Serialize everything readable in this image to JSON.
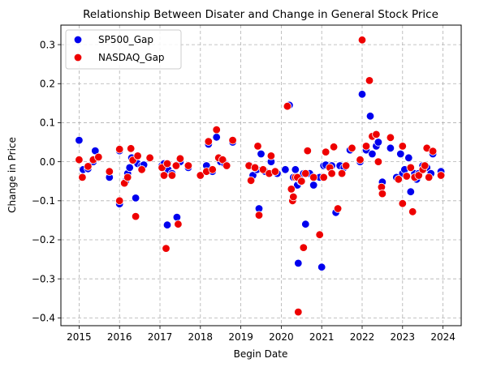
{
  "chart_data": {
    "type": "scatter",
    "title": "Relationship Between Disater and Change in General Stock Price",
    "xlabel": "Begin Date",
    "ylabel": "Change in Price",
    "xlim": [
      2014.55,
      2024.45
    ],
    "ylim": [
      -0.42,
      0.35
    ],
    "x_ticks": [
      2015,
      2016,
      2017,
      2018,
      2019,
      2020,
      2021,
      2022,
      2023,
      2024
    ],
    "x_tick_labels": [
      "2015",
      "2016",
      "2017",
      "2018",
      "2019",
      "2020",
      "2021",
      "2022",
      "2023",
      "2024"
    ],
    "y_ticks": [
      -0.4,
      -0.3,
      -0.2,
      -0.1,
      0.0,
      0.1,
      0.2,
      0.3
    ],
    "y_tick_labels": [
      "−0.4",
      "−0.3",
      "−0.2",
      "−0.1",
      "0.0",
      "0.1",
      "0.2",
      "0.3"
    ],
    "grid": true,
    "legend_position": "top-left",
    "series": [
      {
        "name": "SP500_Gap",
        "color": "#0000ee",
        "points": [
          [
            2015.0,
            0.055
          ],
          [
            2015.1,
            -0.02
          ],
          [
            2015.22,
            -0.018
          ],
          [
            2015.35,
            0.0
          ],
          [
            2015.4,
            0.028
          ],
          [
            2015.48,
            0.01
          ],
          [
            2015.75,
            -0.04
          ],
          [
            2016.0,
            -0.108
          ],
          [
            2016.0,
            0.028
          ],
          [
            2016.15,
            -0.05
          ],
          [
            2016.2,
            -0.03
          ],
          [
            2016.25,
            -0.015
          ],
          [
            2016.3,
            0.01
          ],
          [
            2016.4,
            -0.093
          ],
          [
            2016.45,
            -0.005
          ],
          [
            2016.55,
            -0.01
          ],
          [
            2016.6,
            -0.008
          ],
          [
            2017.05,
            -0.01
          ],
          [
            2017.1,
            -0.005
          ],
          [
            2017.18,
            -0.162
          ],
          [
            2017.2,
            -0.02
          ],
          [
            2017.3,
            -0.03
          ],
          [
            2017.42,
            -0.142
          ],
          [
            2017.5,
            0.0
          ],
          [
            2017.7,
            -0.015
          ],
          [
            2018.0,
            -0.035
          ],
          [
            2018.15,
            -0.01
          ],
          [
            2018.2,
            0.045
          ],
          [
            2018.3,
            -0.025
          ],
          [
            2018.4,
            0.063
          ],
          [
            2018.5,
            0.0
          ],
          [
            2018.6,
            -0.005
          ],
          [
            2018.8,
            0.05
          ],
          [
            2019.2,
            -0.008
          ],
          [
            2019.3,
            -0.035
          ],
          [
            2019.4,
            -0.02
          ],
          [
            2019.45,
            -0.12
          ],
          [
            2019.5,
            0.02
          ],
          [
            2019.6,
            -0.025
          ],
          [
            2019.75,
            0.0
          ],
          [
            2019.9,
            -0.03
          ],
          [
            2020.1,
            -0.02
          ],
          [
            2020.2,
            0.145
          ],
          [
            2020.3,
            -0.04
          ],
          [
            2020.35,
            -0.02
          ],
          [
            2020.4,
            -0.06
          ],
          [
            2020.42,
            -0.26
          ],
          [
            2020.48,
            -0.05
          ],
          [
            2020.55,
            -0.03
          ],
          [
            2020.6,
            -0.16
          ],
          [
            2020.7,
            -0.03
          ],
          [
            2020.8,
            -0.06
          ],
          [
            2020.95,
            -0.04
          ],
          [
            2021.0,
            -0.27
          ],
          [
            2021.05,
            -0.01
          ],
          [
            2021.1,
            -0.008
          ],
          [
            2021.25,
            -0.01
          ],
          [
            2021.35,
            -0.13
          ],
          [
            2021.45,
            -0.01
          ],
          [
            2021.55,
            -0.015
          ],
          [
            2021.7,
            0.03
          ],
          [
            2021.95,
            0.0
          ],
          [
            2022.0,
            0.173
          ],
          [
            2022.1,
            0.03
          ],
          [
            2022.2,
            0.117
          ],
          [
            2022.25,
            0.02
          ],
          [
            2022.35,
            0.04
          ],
          [
            2022.4,
            0.05
          ],
          [
            2022.5,
            -0.052
          ],
          [
            2022.7,
            0.035
          ],
          [
            2022.85,
            -0.04
          ],
          [
            2022.95,
            0.02
          ],
          [
            2023.0,
            -0.03
          ],
          [
            2023.05,
            -0.02
          ],
          [
            2023.15,
            0.01
          ],
          [
            2023.2,
            -0.077
          ],
          [
            2023.3,
            -0.03
          ],
          [
            2023.35,
            -0.045
          ],
          [
            2023.4,
            -0.03
          ],
          [
            2023.5,
            -0.01
          ],
          [
            2023.6,
            -0.015
          ],
          [
            2023.7,
            -0.03
          ],
          [
            2023.75,
            0.02
          ],
          [
            2023.95,
            -0.025
          ]
        ]
      },
      {
        "name": "NASDAQ_Gap",
        "color": "#ee0000",
        "points": [
          [
            2015.0,
            0.005
          ],
          [
            2015.08,
            -0.04
          ],
          [
            2015.22,
            -0.012
          ],
          [
            2015.35,
            0.005
          ],
          [
            2015.48,
            0.012
          ],
          [
            2015.75,
            -0.025
          ],
          [
            2016.0,
            -0.1
          ],
          [
            2016.0,
            0.032
          ],
          [
            2016.12,
            -0.055
          ],
          [
            2016.2,
            -0.04
          ],
          [
            2016.28,
            0.034
          ],
          [
            2016.33,
            0.004
          ],
          [
            2016.4,
            -0.14
          ],
          [
            2016.45,
            0.015
          ],
          [
            2016.55,
            -0.02
          ],
          [
            2016.75,
            0.01
          ],
          [
            2017.05,
            -0.015
          ],
          [
            2017.1,
            -0.035
          ],
          [
            2017.15,
            -0.222
          ],
          [
            2017.18,
            -0.005
          ],
          [
            2017.3,
            -0.035
          ],
          [
            2017.4,
            -0.01
          ],
          [
            2017.45,
            -0.16
          ],
          [
            2017.5,
            0.008
          ],
          [
            2017.7,
            -0.01
          ],
          [
            2018.0,
            -0.035
          ],
          [
            2018.15,
            -0.025
          ],
          [
            2018.2,
            0.052
          ],
          [
            2018.3,
            -0.02
          ],
          [
            2018.4,
            0.082
          ],
          [
            2018.45,
            0.01
          ],
          [
            2018.55,
            0.005
          ],
          [
            2018.65,
            -0.01
          ],
          [
            2018.8,
            0.055
          ],
          [
            2019.2,
            -0.01
          ],
          [
            2019.25,
            -0.048
          ],
          [
            2019.35,
            -0.015
          ],
          [
            2019.45,
            -0.137
          ],
          [
            2019.42,
            0.04
          ],
          [
            2019.55,
            -0.02
          ],
          [
            2019.7,
            -0.03
          ],
          [
            2019.75,
            0.015
          ],
          [
            2019.85,
            -0.025
          ],
          [
            2020.15,
            0.142
          ],
          [
            2020.25,
            -0.07
          ],
          [
            2020.28,
            -0.1
          ],
          [
            2020.3,
            -0.09
          ],
          [
            2020.35,
            -0.04
          ],
          [
            2020.4,
            -0.04
          ],
          [
            2020.42,
            -0.385
          ],
          [
            2020.5,
            -0.05
          ],
          [
            2020.55,
            -0.22
          ],
          [
            2020.6,
            -0.03
          ],
          [
            2020.65,
            0.028
          ],
          [
            2020.8,
            -0.04
          ],
          [
            2020.95,
            -0.187
          ],
          [
            2021.05,
            -0.04
          ],
          [
            2021.1,
            0.025
          ],
          [
            2021.2,
            -0.015
          ],
          [
            2021.25,
            -0.03
          ],
          [
            2021.3,
            0.038
          ],
          [
            2021.4,
            -0.12
          ],
          [
            2021.5,
            -0.03
          ],
          [
            2021.6,
            -0.01
          ],
          [
            2021.75,
            0.035
          ],
          [
            2021.95,
            0.005
          ],
          [
            2022.0,
            0.312
          ],
          [
            2022.1,
            0.04
          ],
          [
            2022.18,
            0.208
          ],
          [
            2022.25,
            0.065
          ],
          [
            2022.35,
            0.07
          ],
          [
            2022.4,
            0.0
          ],
          [
            2022.48,
            -0.065
          ],
          [
            2022.5,
            -0.082
          ],
          [
            2022.7,
            0.062
          ],
          [
            2022.9,
            -0.045
          ],
          [
            2023.0,
            -0.107
          ],
          [
            2023.0,
            0.04
          ],
          [
            2023.1,
            -0.037
          ],
          [
            2023.2,
            -0.015
          ],
          [
            2023.25,
            -0.128
          ],
          [
            2023.3,
            -0.04
          ],
          [
            2023.4,
            -0.035
          ],
          [
            2023.5,
            -0.02
          ],
          [
            2023.55,
            -0.01
          ],
          [
            2023.6,
            0.035
          ],
          [
            2023.65,
            -0.04
          ],
          [
            2023.75,
            0.027
          ],
          [
            2023.95,
            -0.035
          ]
        ]
      }
    ]
  }
}
